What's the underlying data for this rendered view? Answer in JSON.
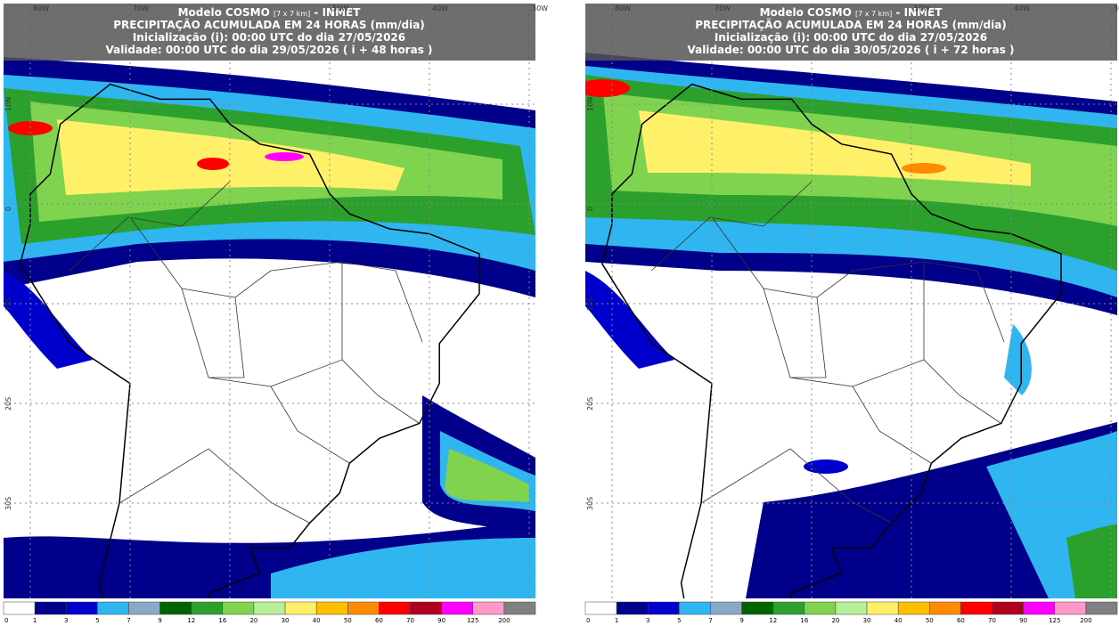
{
  "panels": [
    {
      "title": {
        "model": "Modelo COSMO",
        "resolution": "[7 x 7 km]",
        "source": "- INMET"
      },
      "subtitle": "PRECIPITAÇÃO ACUMULADA EM 24 HORAS (mm/dia)",
      "init": "Inicialização (i): 00:00 UTC do dia 27/05/2026",
      "valid": "Validade: 00:00 UTC do dia 29/05/2026 ( i + 48 horas )",
      "lon_labels": [
        "80W",
        "70W",
        "50W",
        "40W",
        "30W"
      ],
      "lat_labels": [
        "10N",
        "0",
        "10S",
        "20S",
        "30S"
      ]
    },
    {
      "title": {
        "model": "Modelo COSMO",
        "resolution": "[7 x 7 km]",
        "source": "- INMET"
      },
      "subtitle": "PRECIPITAÇÃO ACUMULADA EM 24 HORAS (mm/dia)",
      "init": "Inicialização (i): 00:00 UTC do dia 27/05/2026",
      "valid": "Validade: 00:00 UTC do dia 30/05/2026 ( i + 72 horas )",
      "lon_labels": [
        "80W",
        "70W",
        "50W",
        "40W",
        "30W"
      ],
      "lat_labels": [
        "10N",
        "0",
        "10S",
        "20S",
        "30S"
      ]
    }
  ],
  "legend": {
    "levels": [
      0,
      1,
      3,
      5,
      7,
      9,
      12,
      16,
      20,
      30,
      40,
      50,
      60,
      70,
      90,
      125,
      200
    ],
    "colors": [
      "#ffffff",
      "#00008b",
      "#0000cd",
      "#2fb5f0",
      "#8aa8c8",
      "#006400",
      "#2ca02c",
      "#7fd34e",
      "#b8f09a",
      "#fff06a",
      "#ffc000",
      "#ff8c00",
      "#ff0000",
      "#b00020",
      "#ff00ff",
      "#ff99cc",
      "#808080"
    ]
  }
}
